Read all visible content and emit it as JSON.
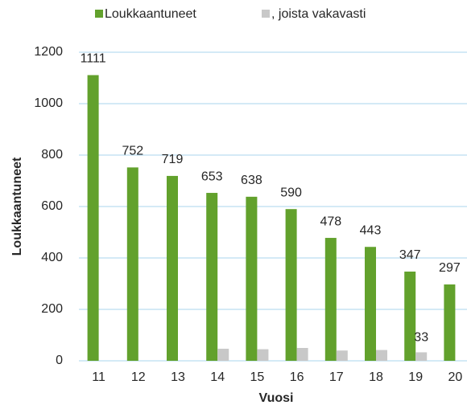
{
  "chart_data": {
    "type": "bar",
    "categories": [
      "11",
      "12",
      "13",
      "14",
      "15",
      "16",
      "17",
      "18",
      "19",
      "20"
    ],
    "series": [
      {
        "name": "Loukkaantuneet",
        "color": "#62a12c",
        "values": [
          1111,
          752,
          719,
          653,
          638,
          590,
          478,
          443,
          347,
          297
        ]
      },
      {
        "name": ", joista vakavasti",
        "color": "#c8c8c8",
        "values": [
          null,
          null,
          null,
          47,
          45,
          50,
          40,
          42,
          33,
          null
        ],
        "value_labels": [
          null,
          null,
          null,
          null,
          null,
          null,
          null,
          null,
          "33",
          null
        ]
      }
    ],
    "ylabel": "Loukkaantuneet",
    "xlabel": "Vuosi",
    "ylim": [
      0,
      1200
    ],
    "yticks": [
      0,
      200,
      400,
      600,
      800,
      1000,
      1200
    ],
    "grid": true,
    "legend": "top"
  }
}
